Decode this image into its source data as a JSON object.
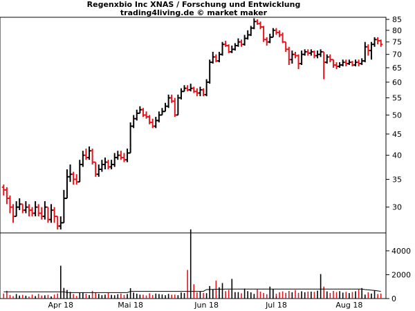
{
  "header": {
    "title": "Regenxbio Inc XNAS / Forschung und Entwicklung",
    "subtitle": "trading4living.de © market maker"
  },
  "colors": {
    "up": "#000000",
    "down": "#e8121b",
    "frame": "#000000",
    "ma_line": "#000000"
  },
  "chart_data": [
    {
      "type": "ohlc",
      "title": "Regenxbio Inc XNAS / Forschung und Entwicklung",
      "scale": "log",
      "ylim": [
        26,
        86
      ],
      "y_ticks": [
        30,
        35,
        40,
        45,
        50,
        55,
        60,
        65,
        70,
        75,
        80,
        85
      ],
      "y_tick_labels": [
        "30",
        "35",
        "40",
        "45",
        "50",
        "55",
        "60",
        "65",
        "70",
        "75",
        "80",
        "85"
      ],
      "x_labels": [
        "Apr 18",
        "Mai 18",
        "Jun 18",
        "Jul 18",
        "Aug 18"
      ],
      "x_label_index": [
        18,
        40,
        64,
        86,
        109
      ],
      "start_open": 33.5,
      "closes": [
        33.0,
        31.5,
        30.0,
        28.5,
        30.0,
        30.5,
        29.5,
        30.0,
        29.5,
        29.0,
        30.0,
        29.0,
        28.5,
        30.0,
        28.0,
        29.5,
        28.5,
        27.0,
        27.5,
        31.5,
        35.5,
        36.0,
        35.0,
        34.5,
        38.0,
        40.0,
        39.5,
        41.0,
        38.5,
        36.0,
        37.0,
        38.0,
        38.5,
        37.5,
        38.0,
        39.5,
        40.0,
        39.5,
        39.0,
        40.5,
        47.0,
        49.0,
        50.5,
        51.5,
        50.0,
        49.5,
        48.0,
        47.0,
        48.5,
        50.0,
        51.0,
        52.5,
        55.0,
        54.0,
        50.0,
        55.0,
        57.0,
        58.0,
        57.5,
        58.0,
        57.0,
        56.5,
        57.5,
        56.0,
        60.0,
        67.0,
        69.0,
        67.5,
        70.0,
        74.0,
        73.5,
        71.0,
        72.0,
        73.5,
        75.0,
        74.0,
        76.5,
        78.0,
        81.0,
        84.0,
        83.0,
        81.5,
        76.0,
        75.0,
        77.0,
        80.0,
        79.0,
        78.0,
        75.0,
        72.0,
        68.0,
        70.0,
        69.5,
        66.5,
        70.0,
        71.0,
        70.5,
        71.0,
        69.5,
        70.0,
        71.0,
        67.0,
        69.0,
        68.0,
        66.0,
        65.5,
        66.0,
        67.0,
        66.5,
        67.0,
        66.0,
        67.0,
        66.5,
        67.5,
        73.0,
        71.5,
        74.0,
        76.0,
        75.5,
        74.0
      ],
      "highs": [
        34.0,
        33.5,
        32.0,
        30.5,
        31.0,
        31.5,
        30.5,
        31.0,
        30.5,
        30.0,
        31.0,
        30.5,
        30.0,
        31.0,
        30.0,
        30.5,
        30.0,
        28.5,
        28.5,
        33.0,
        37.0,
        38.0,
        36.5,
        36.0,
        39.0,
        41.0,
        41.5,
        42.0,
        41.5,
        38.5,
        38.0,
        39.0,
        39.5,
        39.0,
        39.0,
        40.5,
        41.0,
        41.0,
        40.5,
        41.5,
        48.0,
        50.0,
        51.5,
        52.5,
        52.0,
        51.0,
        50.0,
        49.0,
        49.5,
        51.0,
        52.0,
        53.5,
        56.0,
        56.0,
        55.0,
        56.0,
        58.0,
        59.0,
        59.0,
        59.5,
        58.5,
        58.0,
        58.5,
        58.0,
        61.0,
        68.0,
        71.0,
        70.0,
        71.0,
        75.0,
        75.5,
        74.0,
        73.5,
        74.5,
        76.5,
        76.0,
        78.0,
        80.0,
        82.0,
        85.5,
        85.0,
        84.0,
        82.0,
        77.0,
        78.5,
        81.0,
        81.0,
        80.0,
        79.0,
        75.0,
        73.0,
        71.5,
        71.0,
        70.0,
        71.5,
        72.0,
        72.0,
        72.0,
        71.5,
        71.5,
        72.0,
        71.0,
        70.0,
        70.0,
        68.0,
        67.0,
        67.0,
        68.0,
        68.0,
        68.0,
        67.5,
        68.0,
        68.0,
        68.5,
        75.0,
        74.0,
        75.0,
        77.0,
        77.0,
        76.0
      ],
      "lows": [
        32.0,
        30.5,
        29.0,
        27.5,
        28.5,
        29.5,
        29.0,
        29.0,
        28.5,
        28.5,
        28.5,
        28.5,
        28.0,
        28.0,
        27.5,
        27.5,
        27.5,
        26.5,
        26.5,
        27.5,
        31.5,
        34.5,
        34.0,
        34.0,
        34.5,
        37.5,
        39.0,
        39.0,
        38.0,
        35.5,
        35.5,
        36.5,
        37.0,
        37.0,
        37.0,
        37.5,
        39.0,
        39.0,
        38.5,
        38.5,
        40.5,
        46.5,
        48.5,
        50.5,
        49.5,
        49.0,
        47.5,
        46.5,
        46.5,
        48.0,
        50.0,
        51.0,
        52.0,
        53.5,
        49.5,
        50.0,
        54.5,
        57.0,
        57.0,
        57.0,
        56.5,
        55.5,
        55.5,
        55.5,
        55.5,
        59.5,
        66.5,
        67.0,
        67.0,
        69.5,
        73.0,
        70.5,
        70.5,
        71.5,
        73.0,
        73.0,
        73.5,
        76.0,
        77.5,
        80.5,
        82.5,
        80.5,
        75.0,
        73.5,
        74.5,
        77.0,
        78.0,
        77.0,
        74.5,
        71.0,
        66.0,
        66.5,
        68.5,
        64.5,
        66.0,
        69.5,
        69.5,
        69.5,
        68.5,
        68.5,
        69.0,
        61.0,
        66.5,
        67.0,
        65.0,
        64.5,
        65.0,
        65.5,
        65.5,
        66.0,
        65.5,
        65.5,
        65.5,
        66.0,
        67.0,
        69.5,
        68.0,
        73.0,
        74.0,
        73.0
      ]
    },
    {
      "type": "bar",
      "title": "",
      "ylim": [
        0,
        5500
      ],
      "y_ticks": [
        0,
        2000,
        4000
      ],
      "y_tick_labels": [
        "0",
        "2000",
        "4000"
      ],
      "volume": [
        420,
        650,
        300,
        200,
        380,
        250,
        310,
        240,
        170,
        330,
        210,
        390,
        250,
        270,
        310,
        180,
        330,
        420,
        2750,
        890,
        720,
        560,
        380,
        220,
        470,
        510,
        400,
        290,
        640,
        520,
        390,
        280,
        330,
        470,
        310,
        280,
        360,
        420,
        300,
        380,
        870,
        500,
        410,
        330,
        320,
        260,
        440,
        300,
        420,
        380,
        340,
        280,
        390,
        320,
        330,
        280,
        510,
        460,
        2400,
        5800,
        1200,
        520,
        600,
        470,
        450,
        1050,
        780,
        1500,
        940,
        1300,
        620,
        730,
        1650,
        540,
        540,
        440,
        840,
        620,
        520,
        390,
        760,
        580,
        470,
        360,
        1000,
        810,
        410,
        530,
        600,
        480,
        640,
        530,
        710,
        480,
        610,
        530,
        580,
        580,
        560,
        660,
        2050,
        1000,
        600,
        470,
        640,
        540,
        620,
        500,
        560,
        460,
        550,
        610,
        760,
        880,
        330,
        530,
        420,
        660,
        380,
        420
      ],
      "ma": [
        570,
        570,
        570,
        570,
        570,
        570,
        570,
        570,
        570,
        570,
        570,
        570,
        570,
        570,
        570,
        570,
        570,
        570,
        570,
        570,
        500,
        500,
        500,
        500,
        500,
        500,
        500,
        500,
        500,
        500,
        500,
        500,
        500,
        500,
        500,
        500,
        500,
        500,
        500,
        500,
        600,
        600,
        600,
        600,
        600,
        600,
        600,
        600,
        600,
        600,
        600,
        600,
        600,
        600,
        600,
        600,
        600,
        600,
        600,
        600,
        600,
        600,
        600,
        600,
        750,
        760,
        770,
        780,
        790,
        790,
        800,
        800,
        800,
        800,
        800,
        800,
        800,
        800,
        800,
        800,
        800,
        800,
        800,
        800,
        800,
        800,
        800,
        800,
        800,
        800,
        800,
        800,
        800,
        800,
        800,
        800,
        800,
        800,
        800,
        800,
        800,
        800,
        800,
        800,
        800,
        800,
        800,
        800,
        800,
        800,
        800,
        800,
        800,
        800,
        750,
        730,
        700,
        680,
        640,
        600
      ]
    }
  ]
}
